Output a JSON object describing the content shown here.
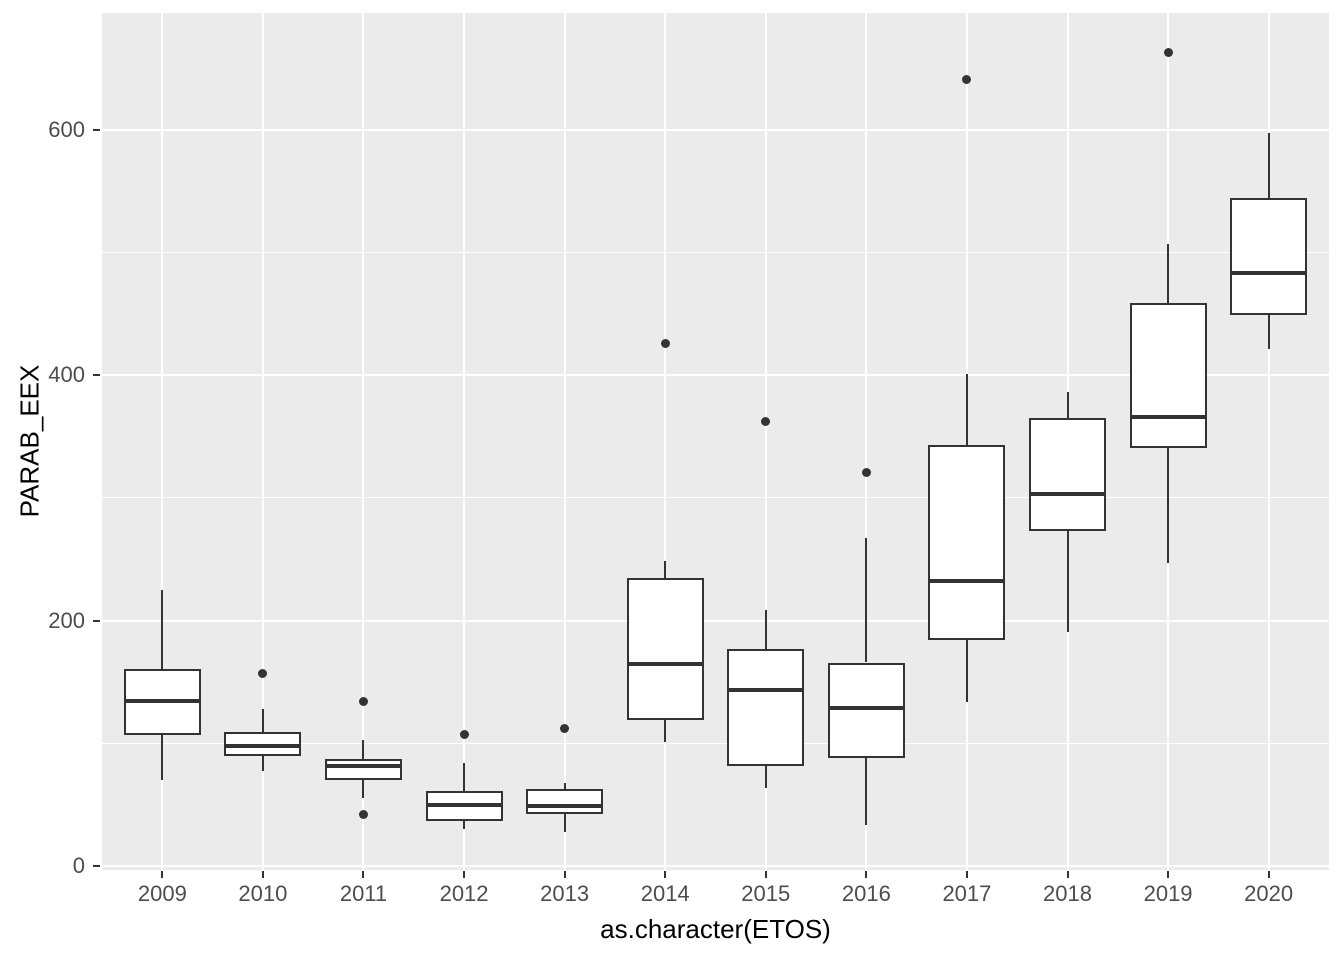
{
  "chart_data": {
    "type": "boxplot",
    "title": "",
    "xlabel": "as.character(ETOS)",
    "ylabel": "PARAB_EEX",
    "categories": [
      "2009",
      "2010",
      "2011",
      "2012",
      "2013",
      "2014",
      "2015",
      "2016",
      "2017",
      "2018",
      "2019",
      "2020"
    ],
    "y_major_ticks": [
      0,
      200,
      400,
      600
    ],
    "y_minor_gridlines": [
      100,
      300,
      500
    ],
    "ylim": [
      -3,
      695
    ],
    "legend": "none",
    "grid": "on",
    "boxes": [
      {
        "category": "2009",
        "whisker_low": 70,
        "q1": 107,
        "median": 135,
        "q3": 161,
        "whisker_high": 225,
        "outliers": []
      },
      {
        "category": "2010",
        "whisker_low": 78,
        "q1": 90,
        "median": 98,
        "q3": 109,
        "whisker_high": 128,
        "outliers": [
          157
        ]
      },
      {
        "category": "2011",
        "whisker_low": 56,
        "q1": 70,
        "median": 82,
        "q3": 87,
        "whisker_high": 103,
        "outliers": [
          42,
          134
        ]
      },
      {
        "category": "2012",
        "whisker_low": 30,
        "q1": 37,
        "median": 50,
        "q3": 61,
        "whisker_high": 84,
        "outliers": [
          107
        ]
      },
      {
        "category": "2013",
        "whisker_low": 28,
        "q1": 43,
        "median": 49,
        "q3": 63,
        "whisker_high": 68,
        "outliers": [
          112
        ]
      },
      {
        "category": "2014",
        "whisker_low": 101,
        "q1": 119,
        "median": 165,
        "q3": 235,
        "whisker_high": 249,
        "outliers": [
          426
        ]
      },
      {
        "category": "2015",
        "whisker_low": 64,
        "q1": 82,
        "median": 144,
        "q3": 177,
        "whisker_high": 209,
        "outliers": [
          362
        ]
      },
      {
        "category": "2016",
        "whisker_low": 34,
        "q1": 88,
        "median": 129,
        "q3": 166,
        "whisker_high": 267,
        "outliers": [
          321
        ]
      },
      {
        "category": "2017",
        "whisker_low": 134,
        "q1": 184,
        "median": 232,
        "q3": 343,
        "whisker_high": 401,
        "outliers": [
          641
        ]
      },
      {
        "category": "2018",
        "whisker_low": 191,
        "q1": 273,
        "median": 303,
        "q3": 365,
        "whisker_high": 386,
        "outliers": []
      },
      {
        "category": "2019",
        "whisker_low": 247,
        "q1": 341,
        "median": 366,
        "q3": 459,
        "whisker_high": 507,
        "outliers": [
          663
        ]
      },
      {
        "category": "2020",
        "whisker_low": 421,
        "q1": 449,
        "median": 483,
        "q3": 544,
        "whisker_high": 597,
        "outliers": []
      }
    ],
    "style": {
      "panel_bg": "#EBEBEB",
      "grid_color": "#FFFFFF",
      "box_fill": "#FFFFFF",
      "line_color": "#333333",
      "axis_text_color": "#4D4D4D",
      "axis_title_color": "#000000"
    }
  }
}
